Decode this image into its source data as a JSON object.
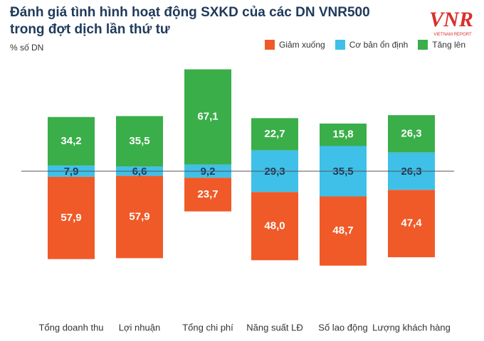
{
  "title_line1": "Đánh giá tình hình hoạt động SXKD của các DN VNR500",
  "title_line2": "trong đợt dịch lần thứ tư",
  "unit": "% số DN",
  "logo": {
    "mark": "VNR",
    "subtitle": "VIETNAM REPORT"
  },
  "colors": {
    "decrease": "#f05a28",
    "stable": "#3fc0e8",
    "increase": "#3aae49",
    "baseline": "#555555"
  },
  "chart_data": {
    "type": "bar",
    "categories": [
      "Tổng doanh thu",
      "Lợi nhuận",
      "Tổng chi phí",
      "Năng suất LĐ",
      "Số lao động",
      "Lượng khách hàng"
    ],
    "series": [
      {
        "name": "Giảm xuống",
        "values": [
          57.9,
          57.9,
          23.7,
          48.0,
          48.7,
          47.4
        ]
      },
      {
        "name": "Cơ bản ổn định",
        "values": [
          7.9,
          6.6,
          9.2,
          29.3,
          35.5,
          26.3
        ]
      },
      {
        "name": "Tăng lên",
        "values": [
          34.2,
          35.5,
          67.1,
          22.7,
          15.8,
          26.3
        ]
      }
    ],
    "labels": {
      "decrease": [
        "57,9",
        "57,9",
        "23,7",
        "48,0",
        "48,7",
        "47,4"
      ],
      "stable": [
        "7,9",
        "6,6",
        "9,2",
        "29,3",
        "35,5",
        "26,3"
      ],
      "increase": [
        "34,2",
        "35,5",
        "67,1",
        "22,7",
        "15,8",
        "26,3"
      ]
    },
    "stacking": "diverging: stable straddles baseline, increase above, decrease below",
    "legend_position": "top-right"
  }
}
